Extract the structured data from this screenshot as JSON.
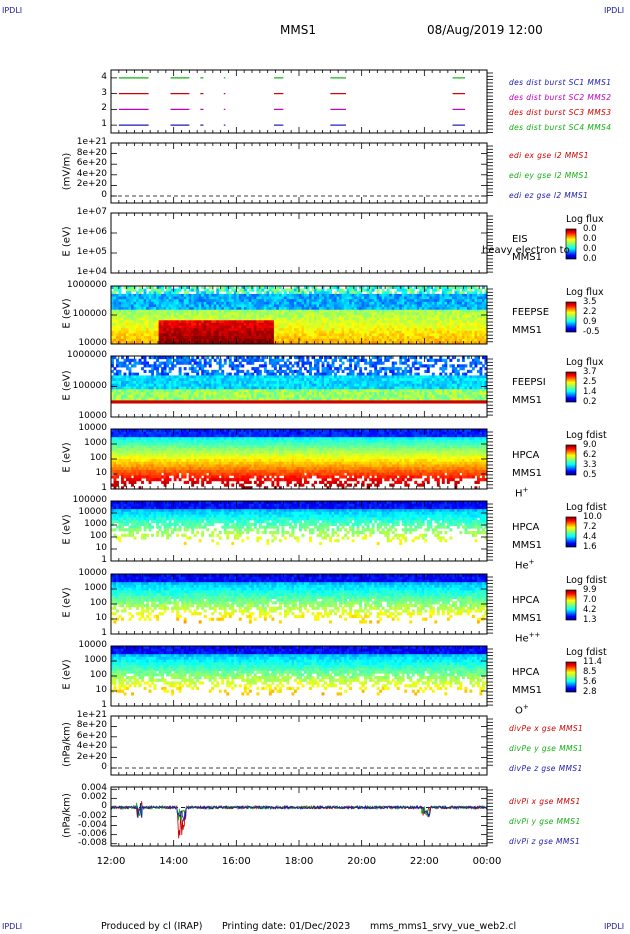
{
  "header": {
    "corner_label": "IPDLI",
    "spacecraft": "MMS1",
    "datetime": "08/Aug/2019 12:00"
  },
  "footer": {
    "produced_by": "Produced by cl (IRAP)",
    "printing_date": "Printing date: 01/Dec/2023",
    "filename": "mms_mms1_srvy_vue_web2.cl"
  },
  "colors": {
    "mms1": "#1a1ab0",
    "mms2": "#c000c0",
    "mms3": "#d00000",
    "mms4": "#10b010",
    "ex": "#d00000",
    "ey": "#10b010",
    "ez": "#1a1ab0"
  },
  "chart_data": [
    {
      "type": "scatter",
      "panel": "burst",
      "ylim": [
        0.5,
        4.5
      ],
      "yticks": [
        "4",
        "3",
        "2",
        "1"
      ],
      "legend": [
        {
          "text": "des dist burst SC1 MMS1",
          "color": "#1a1ab0"
        },
        {
          "text": "des dist burst SC2 MMS2",
          "color": "#c000c0"
        },
        {
          "text": "des dist burst SC3 MMS3",
          "color": "#d00000"
        },
        {
          "text": "des dist burst SC4 MMS4",
          "color": "#10b010"
        }
      ],
      "intervals_hours": [
        [
          12.25,
          13.2
        ],
        [
          13.9,
          14.5
        ],
        [
          14.85,
          14.95
        ],
        [
          15.6,
          15.65
        ],
        [
          17.2,
          17.5
        ],
        [
          19.0,
          19.5
        ],
        [
          22.9,
          23.3
        ]
      ]
    },
    {
      "type": "line",
      "panel": "edi",
      "ylabel": "(mV/m)",
      "yticks": [
        "1e+21",
        "8e+20",
        "6e+20",
        "4e+20",
        "2e+20",
        "0"
      ],
      "legend": [
        {
          "text": "edi ex gse l2 MMS1",
          "color": "#d00000"
        },
        {
          "text": "edi ey gse l2 MMS1",
          "color": "#10b010"
        },
        {
          "text": "edi ez gse l2 MMS1",
          "color": "#1a1ab0"
        }
      ]
    },
    {
      "type": "heatmap",
      "panel": "eis",
      "ylabel": "E (eV)",
      "yticks": [
        "1e+07",
        "1e+06",
        "1e+05",
        "1e+04"
      ],
      "label_lines": [
        "EIS",
        "MMS1"
      ],
      "overlay_text": "heavy electron to",
      "cbar_title": "Log flux",
      "cbar_values": [
        "0.0",
        "0.0",
        "0.0",
        "0.0"
      ]
    },
    {
      "type": "heatmap",
      "panel": "feepse",
      "ylabel": "E (eV)",
      "yticks": [
        "1000000",
        "100000",
        "10000"
      ],
      "label_lines": [
        "FEEPSE",
        "MMS1"
      ],
      "cbar_title": "Log flux",
      "cbar_values": [
        "3.5",
        "2.2",
        "0.9",
        "-0.5"
      ]
    },
    {
      "type": "heatmap",
      "panel": "feepsi",
      "ylabel": "E (eV)",
      "yticks": [
        "1000000",
        "100000",
        "10000"
      ],
      "label_lines": [
        "FEEPSI",
        "MMS1"
      ],
      "cbar_title": "Log flux",
      "cbar_values": [
        "3.7",
        "2.5",
        "1.4",
        "0.2"
      ]
    },
    {
      "type": "heatmap",
      "panel": "hpca_h",
      "ylabel": "E (eV)",
      "yticks": [
        "10000",
        "1000",
        "100",
        "10",
        "1"
      ],
      "label_lines": [
        "HPCA",
        "MMS1",
        "H+"
      ],
      "cbar_title": "Log fdist",
      "cbar_values": [
        "9.0",
        "6.2",
        "3.3",
        "0.5"
      ]
    },
    {
      "type": "heatmap",
      "panel": "hpca_he",
      "ylabel": "E (eV)",
      "yticks": [
        "100000",
        "10000",
        "1000",
        "100",
        "10",
        "1"
      ],
      "label_lines": [
        "HPCA",
        "MMS1",
        "He+"
      ],
      "cbar_title": "Log fdist",
      "cbar_values": [
        "10.0",
        "7.2",
        "4.4",
        "1.6"
      ]
    },
    {
      "type": "heatmap",
      "panel": "hpca_hepp",
      "ylabel": "E (eV)",
      "yticks": [
        "10000",
        "1000",
        "100",
        "10",
        "1"
      ],
      "label_lines": [
        "HPCA",
        "MMS1",
        "He++"
      ],
      "cbar_title": "Log fdist",
      "cbar_values": [
        "9.9",
        "7.0",
        "4.2",
        "1.3"
      ]
    },
    {
      "type": "heatmap",
      "panel": "hpca_o",
      "ylabel": "E (eV)",
      "yticks": [
        "10000",
        "1000",
        "100",
        "10",
        "1"
      ],
      "label_lines": [
        "HPCA",
        "MMS1",
        "O+"
      ],
      "cbar_title": "Log fdist",
      "cbar_values": [
        "11.4",
        "8.5",
        "5.6",
        "2.8"
      ]
    },
    {
      "type": "line",
      "panel": "divpe",
      "ylabel": "(nPa/km)",
      "yticks": [
        "1e+21",
        "8e+20",
        "6e+20",
        "4e+20",
        "2e+20",
        "0"
      ],
      "legend": [
        {
          "text": "divPe x gse MMS1",
          "color": "#d00000"
        },
        {
          "text": "divPe y gse MMS1",
          "color": "#10b010"
        },
        {
          "text": "divPe z gse MMS1",
          "color": "#1a1ab0"
        }
      ]
    },
    {
      "type": "line",
      "panel": "divpi",
      "ylabel": "(nPa/km)",
      "ylim": [
        -0.0085,
        0.0045
      ],
      "yticks": [
        "0.004",
        "0.002",
        "0",
        "-0.002",
        "-0.004",
        "-0.006",
        "-0.008"
      ],
      "legend": [
        {
          "text": "divPi x gse MMS1",
          "color": "#d00000"
        },
        {
          "text": "divPi y gse MMS1",
          "color": "#10b010"
        },
        {
          "text": "divPi z gse MMS1",
          "color": "#1a1ab0"
        }
      ]
    }
  ],
  "xaxis": {
    "range_hours": [
      12,
      24
    ],
    "ticks": [
      "12:00",
      "14:00",
      "16:00",
      "18:00",
      "20:00",
      "22:00",
      "00:00"
    ]
  }
}
